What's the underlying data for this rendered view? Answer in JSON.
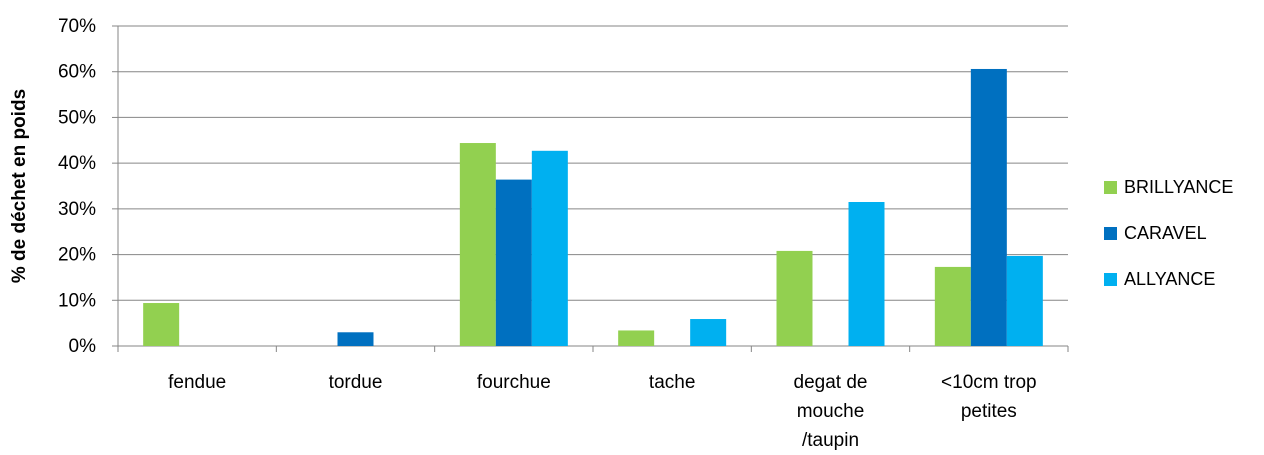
{
  "chart_data": {
    "type": "bar",
    "title": "",
    "xlabel": "",
    "ylabel": "% de déchet en poids",
    "ylim": [
      0,
      70
    ],
    "yticks": [
      "0%",
      "10%",
      "20%",
      "30%",
      "40%",
      "50%",
      "60%",
      "70%"
    ],
    "ytick_values": [
      0,
      10,
      20,
      30,
      40,
      50,
      60,
      70
    ],
    "grid": true,
    "legend_position": "right",
    "categories": [
      [
        "fendue"
      ],
      [
        "tordue"
      ],
      [
        "fourchue"
      ],
      [
        "tache"
      ],
      [
        "degat de",
        "mouche",
        "/taupin"
      ],
      [
        "<10cm trop",
        "petites"
      ]
    ],
    "series": [
      {
        "name": "BRILLYANCE",
        "color": "#92d050",
        "values": [
          9.4,
          0,
          44.4,
          3.4,
          20.8,
          17.3
        ]
      },
      {
        "name": "CARAVEL",
        "color": "#0070c0",
        "values": [
          0,
          3.0,
          36.4,
          0,
          0,
          60.6
        ]
      },
      {
        "name": "ALLYANCE",
        "color": "#00b0f0",
        "values": [
          0,
          0,
          42.7,
          5.9,
          31.5,
          19.7
        ]
      }
    ]
  }
}
